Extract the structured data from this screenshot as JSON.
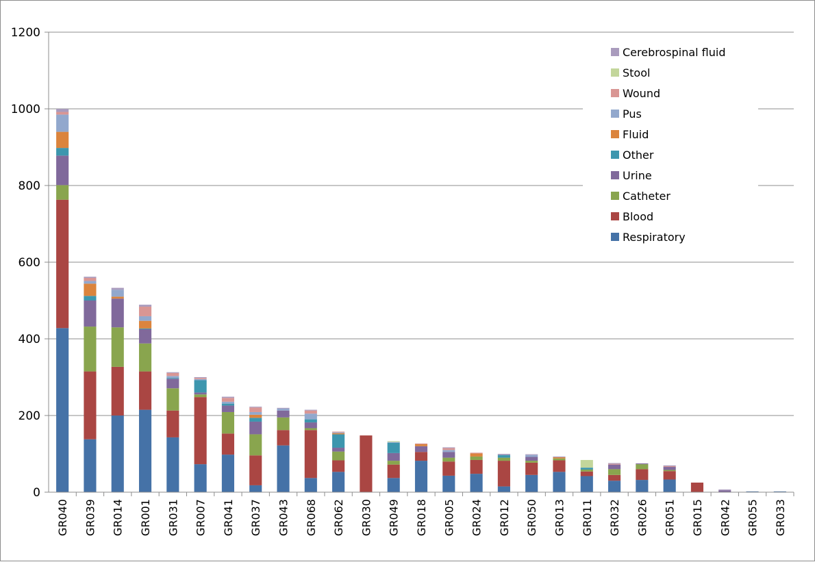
{
  "chart_data": {
    "type": "bar",
    "stacked": true,
    "title": "",
    "xlabel": "",
    "ylabel": "",
    "ylim": [
      0,
      1200
    ],
    "yticks": [
      0,
      200,
      400,
      600,
      800,
      1000,
      1200
    ],
    "grid": true,
    "legend_position": "top-right",
    "categories": [
      "GR040",
      "GR039",
      "GR014",
      "GR001",
      "GR031",
      "GR007",
      "GR041",
      "GR037",
      "GR043",
      "GR068",
      "GR062",
      "GR030",
      "GR049",
      "GR018",
      "GR005",
      "GR024",
      "GR012",
      "GR050",
      "GR013",
      "GR011",
      "GR032",
      "GR026",
      "GR051",
      "GR015",
      "GR042",
      "GR055",
      "GR033"
    ],
    "series": [
      {
        "name": "Respiratory",
        "color": "#4572A7",
        "values": [
          428,
          138,
          200,
          215,
          143,
          73,
          98,
          18,
          122,
          37,
          53,
          0,
          37,
          82,
          43,
          48,
          15,
          45,
          53,
          42,
          30,
          32,
          33,
          0,
          0,
          2,
          2
        ]
      },
      {
        "name": "Blood",
        "color": "#AA4643",
        "values": [
          335,
          177,
          127,
          100,
          70,
          175,
          55,
          78,
          40,
          125,
          30,
          148,
          35,
          23,
          37,
          36,
          67,
          32,
          30,
          12,
          15,
          28,
          22,
          25,
          0,
          0,
          0
        ]
      },
      {
        "name": "Catheter",
        "color": "#89A54E",
        "values": [
          38,
          117,
          103,
          73,
          58,
          7,
          56,
          55,
          33,
          5,
          23,
          0,
          10,
          0,
          10,
          9,
          8,
          5,
          5,
          5,
          15,
          13,
          3,
          0,
          0,
          0,
          0
        ]
      },
      {
        "name": "Urine",
        "color": "#80699B",
        "values": [
          77,
          68,
          75,
          37,
          25,
          5,
          17,
          33,
          18,
          15,
          10,
          0,
          20,
          15,
          15,
          0,
          0,
          10,
          0,
          0,
          12,
          2,
          8,
          0,
          5,
          0,
          0
        ]
      },
      {
        "name": "Other",
        "color": "#3D96AE",
        "values": [
          20,
          12,
          0,
          2,
          2,
          32,
          5,
          10,
          0,
          8,
          35,
          0,
          27,
          0,
          0,
          0,
          7,
          0,
          0,
          5,
          0,
          0,
          0,
          0,
          0,
          0,
          0
        ]
      },
      {
        "name": "Fluid",
        "color": "#DB843D",
        "values": [
          42,
          32,
          5,
          20,
          0,
          0,
          0,
          8,
          0,
          0,
          3,
          0,
          0,
          5,
          0,
          8,
          0,
          0,
          3,
          0,
          0,
          0,
          0,
          0,
          0,
          0,
          0
        ]
      },
      {
        "name": "Pus",
        "color": "#92A8CD",
        "values": [
          45,
          7,
          18,
          12,
          5,
          3,
          5,
          7,
          5,
          15,
          2,
          0,
          2,
          0,
          5,
          0,
          0,
          5,
          0,
          0,
          0,
          0,
          0,
          0,
          0,
          0,
          0
        ]
      },
      {
        "name": "Wound",
        "color": "#D99694",
        "values": [
          7,
          8,
          0,
          25,
          8,
          3,
          10,
          12,
          0,
          8,
          2,
          0,
          0,
          2,
          5,
          2,
          0,
          0,
          0,
          0,
          2,
          0,
          2,
          0,
          0,
          0,
          0
        ]
      },
      {
        "name": "Stool",
        "color": "#C3D69B",
        "values": [
          0,
          0,
          0,
          0,
          0,
          0,
          0,
          0,
          0,
          0,
          0,
          0,
          2,
          0,
          0,
          0,
          0,
          0,
          0,
          20,
          0,
          0,
          0,
          0,
          0,
          0,
          0
        ]
      },
      {
        "name": "Cerebrospinal fluid",
        "color": "#A99BBD",
        "values": [
          8,
          3,
          5,
          5,
          2,
          2,
          3,
          2,
          2,
          2,
          0,
          0,
          0,
          0,
          2,
          0,
          3,
          2,
          2,
          0,
          2,
          0,
          2,
          0,
          2,
          0,
          0
        ]
      }
    ],
    "legend_order": [
      "Cerebrospinal fluid",
      "Stool",
      "Wound",
      "Pus",
      "Fluid",
      "Other",
      "Urine",
      "Catheter",
      "Blood",
      "Respiratory"
    ]
  }
}
